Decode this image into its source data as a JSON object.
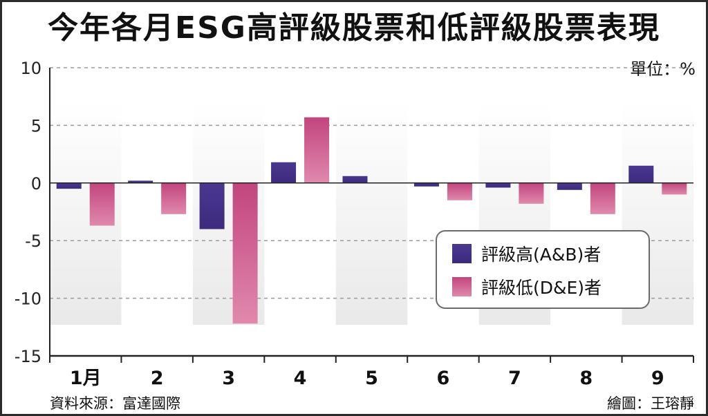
{
  "title": "今年各月ESG高評級股票和低評級股票表現",
  "unit": "單位：%",
  "source": "資料來源：富達國際",
  "credit": "繪圖：王瑢靜",
  "colors": {
    "series_high": "#3d2a7e",
    "series_low": "#c2457e",
    "band": "#e9e9e9",
    "grid": "#9a9a9a",
    "axis": "#222222"
  },
  "chart_data": {
    "type": "bar",
    "categories": [
      "1月",
      "2",
      "3",
      "4",
      "5",
      "6",
      "7",
      "8",
      "9"
    ],
    "series": [
      {
        "name": "評級高(A&B)者",
        "values": [
          -0.5,
          0.2,
          -4.0,
          1.8,
          0.6,
          -0.3,
          -0.4,
          -0.6,
          1.5
        ]
      },
      {
        "name": "評級低(D&E)者",
        "values": [
          -3.7,
          -2.7,
          -12.2,
          5.7,
          0.0,
          -1.5,
          -1.8,
          -2.7,
          -1.0
        ]
      }
    ],
    "y_ticks": [
      "10",
      "5",
      "0",
      "-5",
      "-10",
      "-15"
    ],
    "ylim": [
      -15,
      10
    ],
    "grid": true,
    "legend_position": "right-middle"
  }
}
